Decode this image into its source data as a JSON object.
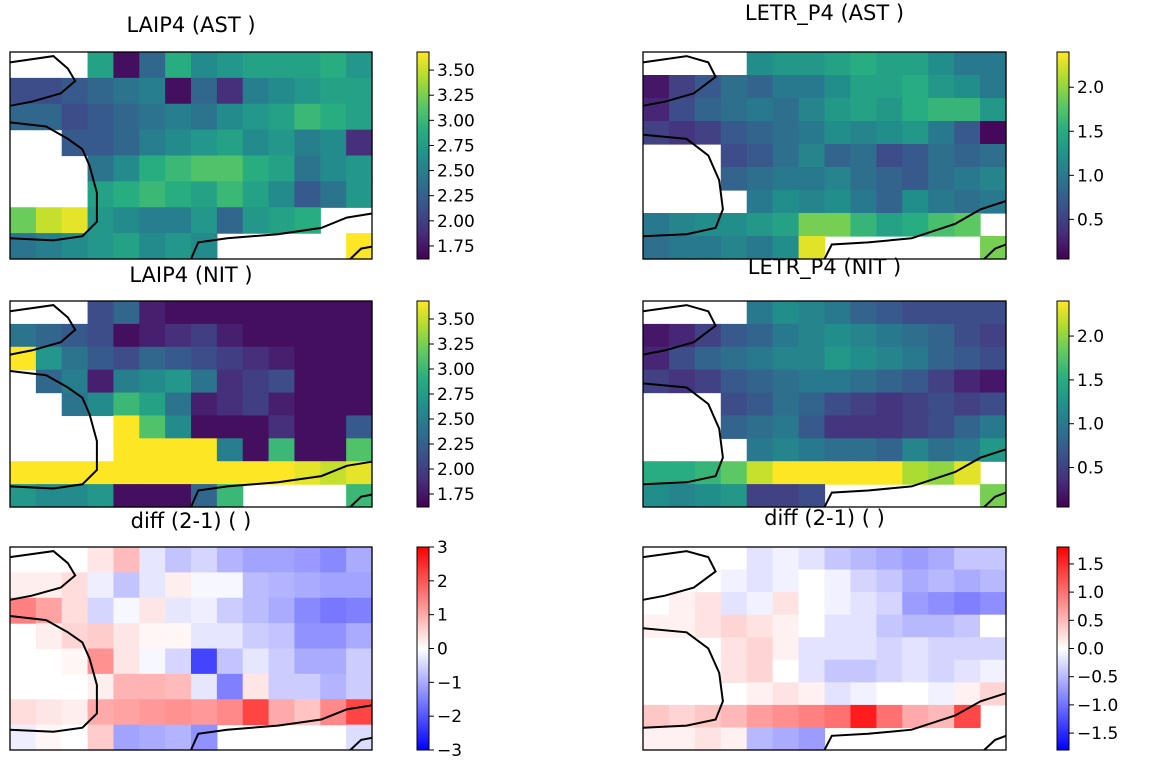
{
  "chart_data": [
    {
      "type": "heatmap",
      "title": "LAIP4 (AST )",
      "cmap": "viridis",
      "colorbar": {
        "min": 1.62,
        "max": 3.68,
        "ticks": [
          3.5,
          3.25,
          3.0,
          2.75,
          2.5,
          2.25,
          2.0,
          1.75
        ],
        "tick_labels": [
          "3.50",
          "3.25",
          "3.00",
          "2.75",
          "2.50",
          "2.25",
          "2.00",
          "1.75"
        ]
      },
      "values": [
        [
          null,
          null,
          null,
          2.8,
          1.7,
          2.3,
          2.9,
          2.6,
          2.7,
          2.8,
          2.8,
          2.8,
          2.9,
          2.7
        ],
        [
          2.1,
          2.1,
          2.2,
          2.3,
          2.4,
          2.5,
          1.7,
          2.3,
          1.9,
          2.5,
          2.6,
          2.7,
          2.8,
          2.8
        ],
        [
          2.3,
          2.3,
          2.1,
          2.2,
          2.3,
          2.4,
          2.5,
          2.4,
          2.6,
          2.7,
          2.8,
          3.0,
          2.9,
          2.8
        ],
        [
          null,
          null,
          2.2,
          2.2,
          2.3,
          2.5,
          2.6,
          2.7,
          2.8,
          2.6,
          2.7,
          2.5,
          2.6,
          1.9
        ],
        [
          null,
          null,
          null,
          2.4,
          2.6,
          2.9,
          3.0,
          3.1,
          3.1,
          2.9,
          2.8,
          2.4,
          2.6,
          2.7
        ],
        [
          null,
          null,
          null,
          2.8,
          2.9,
          3.0,
          2.9,
          2.8,
          3.0,
          2.8,
          2.6,
          2.2,
          2.4,
          2.7
        ],
        [
          3.2,
          3.5,
          3.6,
          2.7,
          2.6,
          2.5,
          2.5,
          2.7,
          2.3,
          2.7,
          2.8,
          2.9,
          null,
          null
        ],
        [
          2.4,
          2.5,
          2.6,
          2.7,
          2.8,
          2.6,
          2.7,
          2.6,
          null,
          null,
          null,
          null,
          null,
          3.7
        ]
      ]
    },
    {
      "type": "heatmap",
      "title": "LETR_P4 (AST )",
      "cmap": "viridis",
      "colorbar": {
        "min": 0.05,
        "max": 2.4,
        "ticks": [
          2.0,
          1.5,
          1.0,
          0.5
        ],
        "tick_labels": [
          "2.0",
          "1.5",
          "1.0",
          "0.5"
        ]
      },
      "values": [
        [
          null,
          null,
          null,
          null,
          1.2,
          1.3,
          1.3,
          1.4,
          1.5,
          1.4,
          1.4,
          1.2,
          1.0,
          1.0
        ],
        [
          0.2,
          0.5,
          0.7,
          0.9,
          0.8,
          1.0,
          1.0,
          1.2,
          1.4,
          1.4,
          1.5,
          1.3,
          1.2,
          1.0
        ],
        [
          0.3,
          0.6,
          0.8,
          0.9,
          1.0,
          0.9,
          1.1,
          1.3,
          1.4,
          1.3,
          1.5,
          1.6,
          1.6,
          1.3
        ],
        [
          0.5,
          0.4,
          0.5,
          0.7,
          0.8,
          0.9,
          1.0,
          1.2,
          1.1,
          1.2,
          1.3,
          1.0,
          0.7,
          0.1
        ],
        [
          null,
          null,
          null,
          0.6,
          0.7,
          0.9,
          1.1,
          0.8,
          0.9,
          0.6,
          0.7,
          0.9,
          0.8,
          0.9
        ],
        [
          null,
          null,
          null,
          0.8,
          0.9,
          1.0,
          1.0,
          1.1,
          0.9,
          0.8,
          0.7,
          0.9,
          1.0,
          1.1
        ],
        [
          null,
          null,
          null,
          null,
          1.0,
          1.2,
          1.1,
          1.2,
          1.0,
          0.8,
          1.2,
          1.0,
          0.9,
          1.0
        ],
        [
          1.0,
          1.1,
          1.2,
          1.2,
          1.3,
          1.4,
          1.9,
          1.9,
          1.6,
          1.4,
          1.5,
          1.7,
          1.8,
          null
        ],
        [
          0.9,
          1.0,
          1.0,
          1.1,
          1.0,
          1.2,
          2.3,
          null,
          null,
          null,
          null,
          null,
          null,
          1.9
        ]
      ]
    },
    {
      "type": "heatmap",
      "title": "LAIP4 (NIT )",
      "cmap": "viridis",
      "colorbar": {
        "min": 1.62,
        "max": 3.68,
        "ticks": [
          3.5,
          3.25,
          3.0,
          2.75,
          2.5,
          2.25,
          2.0,
          1.75
        ],
        "tick_labels": [
          "3.50",
          "3.25",
          "3.00",
          "2.75",
          "2.50",
          "2.25",
          "2.00",
          "1.75"
        ]
      },
      "values": [
        [
          null,
          null,
          null,
          2.1,
          2.3,
          1.8,
          1.7,
          1.7,
          1.7,
          1.7,
          1.7,
          1.7,
          1.7,
          1.7
        ],
        [
          2.4,
          2.3,
          2.2,
          2.1,
          1.7,
          1.8,
          1.9,
          2.0,
          1.8,
          1.7,
          1.7,
          1.7,
          1.7,
          1.7
        ],
        [
          3.7,
          2.7,
          2.4,
          2.2,
          2.1,
          2.3,
          2.2,
          2.1,
          2.0,
          1.9,
          1.8,
          1.7,
          1.7,
          1.7
        ],
        [
          null,
          2.3,
          2.5,
          1.8,
          2.5,
          2.6,
          2.7,
          2.4,
          1.9,
          2.0,
          2.1,
          1.7,
          1.7,
          1.7
        ],
        [
          null,
          null,
          2.4,
          2.6,
          3.0,
          2.8,
          2.4,
          1.8,
          1.9,
          2.0,
          1.8,
          1.7,
          1.7,
          1.7
        ],
        [
          null,
          null,
          null,
          null,
          3.7,
          3.1,
          2.6,
          1.7,
          1.7,
          1.7,
          1.9,
          1.7,
          1.7,
          2.2
        ],
        [
          null,
          null,
          null,
          null,
          3.7,
          3.7,
          3.7,
          3.7,
          2.5,
          1.7,
          3.0,
          1.7,
          1.7,
          3.1
        ],
        [
          3.7,
          3.7,
          3.7,
          3.7,
          3.7,
          3.7,
          3.7,
          3.7,
          3.7,
          3.7,
          3.7,
          3.6,
          3.5,
          3.6
        ],
        [
          2.7,
          2.6,
          2.6,
          2.7,
          1.7,
          1.7,
          1.7,
          2.3,
          3.0,
          null,
          null,
          null,
          null,
          3.0
        ]
      ]
    },
    {
      "type": "heatmap",
      "title": "LETR_P4 (NIT )",
      "cmap": "viridis",
      "colorbar": {
        "min": 0.05,
        "max": 2.4,
        "ticks": [
          2.0,
          1.5,
          1.0,
          0.5
        ],
        "tick_labels": [
          "2.0",
          "1.5",
          "1.0",
          "0.5"
        ]
      },
      "values": [
        [
          null,
          null,
          null,
          null,
          1.0,
          1.2,
          1.1,
          1.0,
          0.8,
          0.7,
          0.6,
          0.6,
          0.6,
          0.6
        ],
        [
          0.2,
          0.3,
          0.5,
          0.7,
          0.8,
          1.0,
          1.1,
          1.2,
          1.1,
          1.0,
          0.9,
          0.8,
          0.6,
          0.5
        ],
        [
          0.3,
          0.6,
          0.8,
          0.9,
          1.0,
          1.1,
          1.1,
          1.3,
          1.2,
          1.1,
          1.0,
          0.8,
          0.7,
          0.6
        ],
        [
          0.5,
          0.4,
          0.5,
          0.7,
          0.8,
          0.9,
          1.0,
          1.0,
          0.9,
          0.8,
          0.7,
          0.5,
          0.3,
          0.2
        ],
        [
          null,
          null,
          null,
          0.6,
          0.7,
          0.9,
          0.8,
          0.6,
          0.5,
          0.4,
          0.5,
          0.6,
          0.5,
          0.6
        ],
        [
          null,
          null,
          null,
          0.8,
          0.9,
          1.0,
          0.7,
          0.4,
          0.4,
          0.4,
          0.5,
          0.6,
          0.8,
          1.0
        ],
        [
          null,
          null,
          null,
          null,
          1.0,
          1.1,
          1.0,
          0.9,
          0.9,
          0.8,
          1.1,
          0.9,
          1.0,
          1.3
        ],
        [
          1.5,
          1.5,
          1.6,
          1.8,
          2.2,
          2.4,
          2.4,
          2.4,
          2.4,
          2.4,
          2.1,
          2.0,
          2.3,
          null
        ],
        [
          1.2,
          1.1,
          1.2,
          1.3,
          0.5,
          0.5,
          0.6,
          null,
          null,
          null,
          null,
          null,
          null,
          1.9
        ]
      ]
    },
    {
      "type": "heatmap",
      "title": "diff (2-1) ( )",
      "cmap": "bwr",
      "colorbar": {
        "min": -3.0,
        "max": 3.0,
        "ticks": [
          3,
          2,
          1,
          0,
          -1,
          -2,
          -3
        ],
        "tick_labels": [
          "3",
          "2",
          "1",
          "0",
          "−1",
          "−2",
          "−3"
        ]
      },
      "values": [
        [
          null,
          null,
          null,
          0.3,
          0.8,
          -0.3,
          -0.7,
          -0.5,
          -0.9,
          -1.1,
          -1.1,
          -1.2,
          -1.4,
          -1.0
        ],
        [
          0.2,
          0.2,
          0.4,
          -0.2,
          -0.7,
          -0.3,
          0.2,
          -0.1,
          -0.1,
          -0.8,
          -0.9,
          -1.0,
          -1.1,
          -1.1
        ],
        [
          1.5,
          1.1,
          0.4,
          -0.5,
          -0.1,
          0.3,
          -0.3,
          -0.2,
          -0.6,
          -0.8,
          -1.0,
          -1.4,
          -1.6,
          -1.5
        ],
        [
          null,
          0.2,
          0.5,
          0.6,
          0.3,
          0.1,
          0.1,
          -0.3,
          -0.3,
          -0.6,
          -0.7,
          -1.3,
          -1.3,
          -1.0
        ],
        [
          null,
          null,
          0.1,
          1.3,
          0.3,
          -0.1,
          -0.5,
          -2.2,
          -0.7,
          -0.3,
          -0.6,
          -1.0,
          -1.0,
          -0.6
        ],
        [
          null,
          null,
          null,
          0.2,
          0.9,
          0.9,
          0.8,
          -0.3,
          -1.5,
          0.3,
          -0.6,
          -0.6,
          -0.9,
          -0.6
        ],
        [
          0.4,
          0.3,
          0.2,
          1.0,
          1.1,
          1.2,
          1.3,
          1.2,
          1.4,
          2.2,
          1.0,
          0.7,
          1.4,
          2.2
        ],
        [
          -0.2,
          0.1,
          0.0,
          0.6,
          -1.1,
          -1.0,
          -0.9,
          -1.3,
          null,
          null,
          null,
          null,
          null,
          -0.4
        ]
      ]
    },
    {
      "type": "heatmap",
      "title": "diff (2-1) ( )",
      "cmap": "bwr",
      "colorbar": {
        "min": -1.8,
        "max": 1.8,
        "ticks": [
          1.5,
          1.0,
          0.5,
          0.0,
          -0.5,
          -1.0,
          -1.5
        ],
        "tick_labels": [
          "1.5",
          "1.0",
          "0.5",
          "0.0",
          "−0.5",
          "−1.0",
          "−1.5"
        ]
      },
      "values": [
        [
          null,
          null,
          null,
          null,
          -0.2,
          -0.1,
          -0.2,
          -0.4,
          -0.5,
          -0.6,
          -0.7,
          -0.6,
          -0.4,
          -0.4
        ],
        [
          0.0,
          0.0,
          0.0,
          -0.1,
          -0.2,
          -0.1,
          0.0,
          -0.1,
          -0.3,
          -0.4,
          -0.6,
          -0.5,
          -0.6,
          -0.5
        ],
        [
          0.0,
          0.1,
          0.2,
          -0.2,
          -0.1,
          0.2,
          0.0,
          -0.1,
          -0.2,
          -0.3,
          -0.7,
          -0.8,
          -0.9,
          -0.8
        ],
        [
          0.1,
          0.1,
          0.2,
          0.3,
          0.2,
          0.1,
          0.0,
          -0.2,
          -0.2,
          -0.4,
          -0.5,
          -0.5,
          -0.4,
          0.0
        ],
        [
          null,
          null,
          null,
          0.2,
          0.3,
          0.1,
          -0.2,
          -0.2,
          -0.2,
          -0.3,
          -0.2,
          -0.3,
          -0.3,
          -0.3
        ],
        [
          null,
          null,
          null,
          0.2,
          0.3,
          0.0,
          -0.2,
          -0.4,
          -0.4,
          -0.3,
          -0.2,
          -0.3,
          -0.2,
          -0.1
        ],
        [
          null,
          null,
          null,
          null,
          0.1,
          0.2,
          0.1,
          -0.2,
          -0.1,
          0.0,
          0.0,
          -0.1,
          0.1,
          0.3
        ],
        [
          0.4,
          0.3,
          0.4,
          0.5,
          0.7,
          0.8,
          0.9,
          1.0,
          1.6,
          1.0,
          0.6,
          0.5,
          1.3,
          null
        ],
        [
          0.1,
          0.1,
          0.2,
          0.1,
          -0.5,
          -0.6,
          -0.7,
          null,
          null,
          null,
          null,
          null,
          null,
          0.0
        ]
      ]
    }
  ]
}
